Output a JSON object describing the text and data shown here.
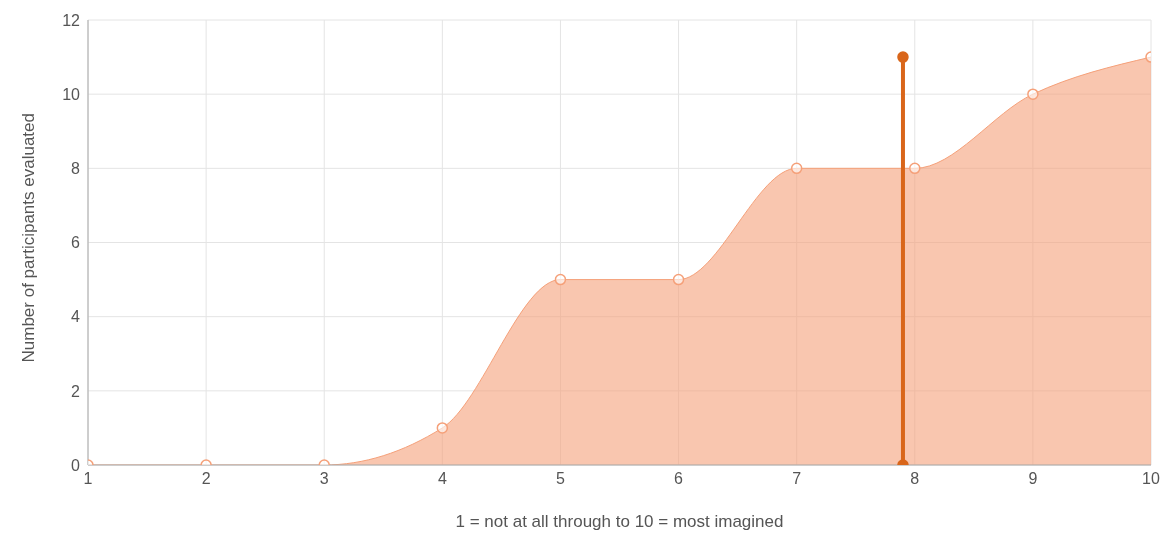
{
  "chart_data": {
    "type": "area",
    "xlabel": "1 = not at all through to 10 = most imagined",
    "ylabel": "Number of participants evaluated",
    "x": [
      1,
      2,
      3,
      4,
      5,
      6,
      7,
      8,
      9,
      10
    ],
    "series": [
      {
        "color": "#f5a079",
        "values": [
          0,
          0,
          0,
          1,
          5,
          5,
          8,
          8,
          10,
          11
        ]
      },
      {
        "type": "line",
        "color": "#d9661a",
        "x": [
          7.9,
          7.9
        ],
        "values": [
          0,
          11
        ]
      }
    ],
    "xlim": [
      1,
      10
    ],
    "xticks": [
      1,
      2,
      3,
      4,
      5,
      6,
      7,
      8,
      9,
      10
    ],
    "ylim": [
      0,
      12
    ],
    "yticks": [
      0,
      2,
      4,
      6,
      8,
      10,
      12
    ],
    "grid": true,
    "marker": "circle"
  }
}
